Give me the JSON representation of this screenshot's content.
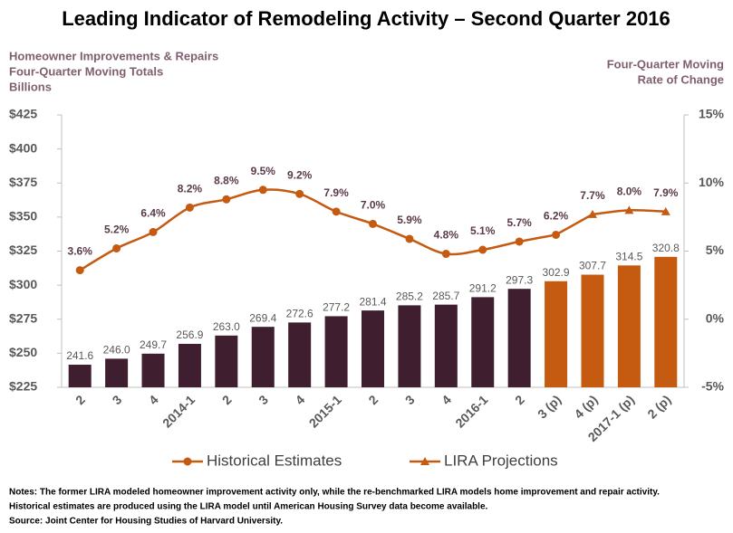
{
  "chart_data": {
    "type": "bar-line",
    "title": "Leading Indicator of Remodeling Activity – Second Quarter 2016",
    "y_axis_title": [
      "Homeowner Improvements & Repairs",
      "Four-Quarter Moving Totals",
      "Billions"
    ],
    "y2_axis_title": [
      "Four-Quarter Moving",
      "Rate of Change"
    ],
    "categories": [
      "2",
      "3",
      "4",
      "2014-1",
      "2",
      "3",
      "4",
      "2015-1",
      "2",
      "3",
      "4",
      "2016-1",
      "2",
      "3 (p)",
      "4 (p)",
      "2017-1 (p)",
      "2 (p)"
    ],
    "bars": {
      "values": [
        241.6,
        246.0,
        249.7,
        256.9,
        263.0,
        269.4,
        272.6,
        277.2,
        281.4,
        285.2,
        285.7,
        291.2,
        297.3,
        302.9,
        307.7,
        314.5,
        320.8
      ],
      "value_labels": [
        "241.6",
        "246.0",
        "249.7",
        "256.9",
        "263.0",
        "269.4",
        "272.6",
        "277.2",
        "281.4",
        "285.2",
        "285.7",
        "291.2",
        "297.3",
        "302.9",
        "307.7",
        "314.5",
        "320.8"
      ],
      "colors": [
        "#3f1f2f",
        "#3f1f2f",
        "#3f1f2f",
        "#3f1f2f",
        "#3f1f2f",
        "#3f1f2f",
        "#3f1f2f",
        "#3f1f2f",
        "#3f1f2f",
        "#3f1f2f",
        "#3f1f2f",
        "#3f1f2f",
        "#3f1f2f",
        "#c55a11",
        "#c55a11",
        "#c55a11",
        "#c55a11"
      ]
    },
    "series": [
      {
        "name": "Historical Estimates",
        "type": "line",
        "axis": "y2",
        "marker": "circle",
        "color": "#c55a11",
        "values": [
          3.6,
          5.2,
          6.4,
          8.2,
          8.8,
          9.5,
          9.2,
          7.9,
          7.0,
          5.9,
          4.8,
          5.1,
          5.7,
          6.2,
          null,
          null,
          null
        ],
        "value_labels": [
          "3.6%",
          "5.2%",
          "6.4%",
          "8.2%",
          "8.8%",
          "9.5%",
          "9.2%",
          "7.9%",
          "7.0%",
          "5.9%",
          "4.8%",
          "5.1%",
          "5.7%",
          "6.2%",
          null,
          null,
          null
        ]
      },
      {
        "name": "LIRA Projections",
        "type": "line",
        "axis": "y2",
        "marker": "triangle",
        "color": "#c55a11",
        "values": [
          null,
          null,
          null,
          null,
          null,
          null,
          null,
          null,
          null,
          null,
          null,
          null,
          null,
          null,
          7.7,
          8.0,
          7.9
        ],
        "value_labels": [
          null,
          null,
          null,
          null,
          null,
          null,
          null,
          null,
          null,
          null,
          null,
          null,
          null,
          null,
          "7.7%",
          "8.0%",
          "7.9%"
        ]
      }
    ],
    "ylim": [
      225,
      425
    ],
    "yticks": [
      {
        "value": 225,
        "label": "$225"
      },
      {
        "value": 250,
        "label": "$250"
      },
      {
        "value": 275,
        "label": "$275"
      },
      {
        "value": 300,
        "label": "$300"
      },
      {
        "value": 325,
        "label": "$325"
      },
      {
        "value": 350,
        "label": "$350"
      },
      {
        "value": 375,
        "label": "$375"
      },
      {
        "value": 400,
        "label": "$400"
      },
      {
        "value": 425,
        "label": "$425"
      }
    ],
    "y2lim": [
      -5,
      15
    ],
    "y2ticks": [
      {
        "value": -5,
        "label": "-5%"
      },
      {
        "value": 0,
        "label": "0%"
      },
      {
        "value": 5,
        "label": "5%"
      },
      {
        "value": 10,
        "label": "10%"
      },
      {
        "value": 15,
        "label": "15%"
      }
    ],
    "notes": [
      "Notes: The former LIRA modeled homeowner improvement activity only, while the re-benchmarked LIRA models home improvement and repair activity.",
      "Historical estimates are produced using the LIRA model until American Housing Survey data become available.",
      "Source: Joint Center for Housing Studies of Harvard University."
    ]
  }
}
